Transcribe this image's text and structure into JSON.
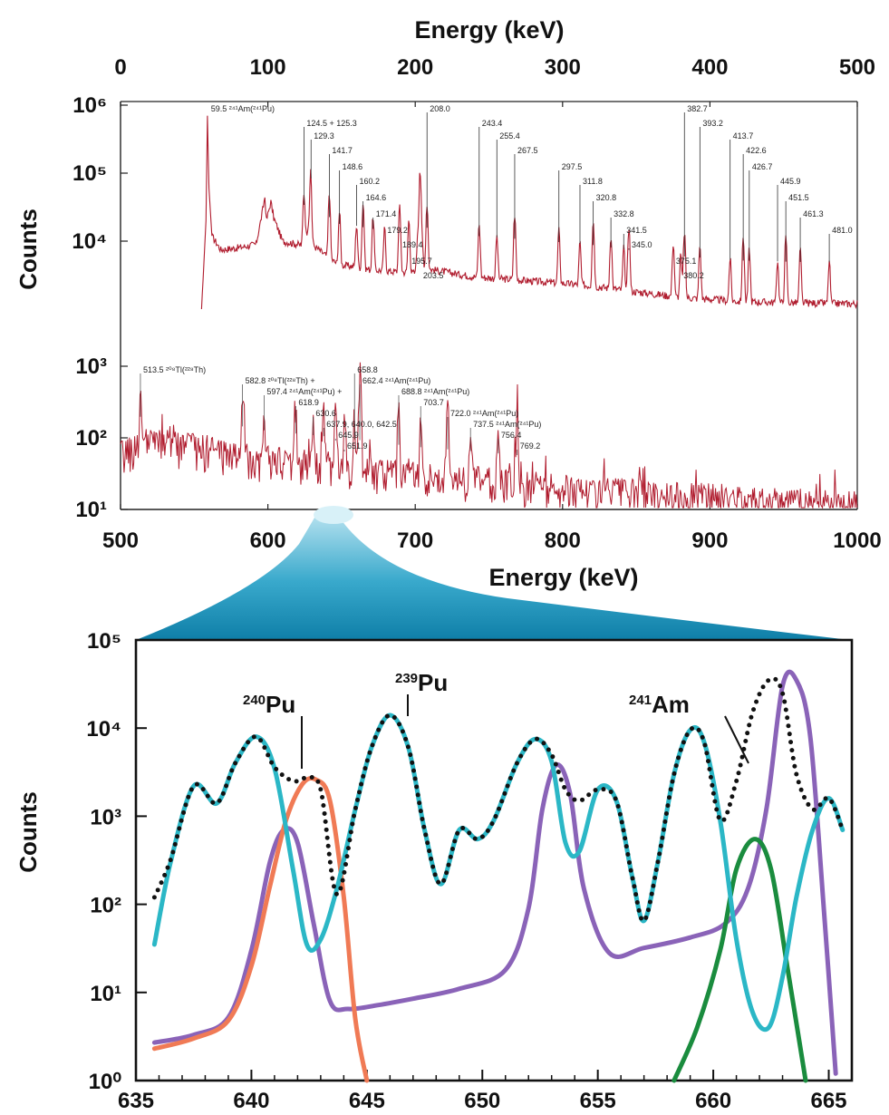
{
  "chart_data": [
    {
      "type": "line",
      "panel": "upper",
      "title": "",
      "xlabel": "Energy (keV)",
      "ylabel": "Counts",
      "yscale": "log",
      "xlim": [
        0,
        500
      ],
      "ylim": [
        1000,
        1000000
      ],
      "xticks": [
        "0",
        "100",
        "200",
        "300",
        "400",
        "500"
      ],
      "yticks": [
        "10⁶",
        "10⁵",
        "10⁴"
      ],
      "color": "#b01c2e",
      "baseline": [
        [
          0,
          1000
        ],
        [
          55,
          1000
        ],
        [
          58,
          20000
        ],
        [
          59,
          700000
        ],
        [
          60,
          60000
        ],
        [
          62,
          12000
        ],
        [
          68,
          7500
        ],
        [
          80,
          8000
        ],
        [
          92,
          9000
        ],
        [
          96,
          25000
        ],
        [
          98,
          45000
        ],
        [
          99,
          20000
        ],
        [
          102,
          38000
        ],
        [
          104,
          22000
        ],
        [
          110,
          10000
        ],
        [
          120,
          9000
        ],
        [
          125,
          8500
        ],
        [
          129,
          30000
        ],
        [
          130,
          9000
        ],
        [
          140,
          6000
        ],
        [
          148,
          4500
        ],
        [
          160,
          4200
        ],
        [
          170,
          3800
        ],
        [
          200,
          3400
        ],
        [
          203,
          35000
        ],
        [
          206,
          4000
        ],
        [
          240,
          3000
        ],
        [
          300,
          2400
        ],
        [
          320,
          2200
        ],
        [
          350,
          1800
        ],
        [
          380,
          1500
        ],
        [
          420,
          1300
        ],
        [
          450,
          1250
        ],
        [
          500,
          1200
        ]
      ],
      "peaks_annotated": [
        {
          "x": 59.5,
          "label": "59.5 ²⁴¹Am(²⁴¹Pu)"
        },
        {
          "x": 124.5,
          "label": "124.5 + 125.3"
        },
        {
          "x": 129.3,
          "label": "129.3"
        },
        {
          "x": 141.7,
          "label": "141.7"
        },
        {
          "x": 148.6,
          "label": "148.6"
        },
        {
          "x": 160.2,
          "label": "160.2"
        },
        {
          "x": 164.6,
          "label": "164.6"
        },
        {
          "x": 171.4,
          "label": "171.4"
        },
        {
          "x": 179.2,
          "label": "179.2"
        },
        {
          "x": 189.4,
          "label": "189.4"
        },
        {
          "x": 195.7,
          "label": "195.7"
        },
        {
          "x": 203.5,
          "label": "203.5"
        },
        {
          "x": 208.0,
          "label": "208.0"
        },
        {
          "x": 243.4,
          "label": "243.4"
        },
        {
          "x": 255.4,
          "label": "255.4"
        },
        {
          "x": 267.5,
          "label": "267.5"
        },
        {
          "x": 297.5,
          "label": "297.5"
        },
        {
          "x": 311.8,
          "label": "311.8"
        },
        {
          "x": 320.8,
          "label": "320.8"
        },
        {
          "x": 332.8,
          "label": "332.8"
        },
        {
          "x": 341.5,
          "label": "341.5"
        },
        {
          "x": 345.0,
          "label": "345.0"
        },
        {
          "x": 375.1,
          "label": "375.1"
        },
        {
          "x": 380.2,
          "label": "380.2"
        },
        {
          "x": 382.7,
          "label": "382.7"
        },
        {
          "x": 393.2,
          "label": "393.2"
        },
        {
          "x": 413.7,
          "label": "413.7"
        },
        {
          "x": 422.6,
          "label": "422.6"
        },
        {
          "x": 426.7,
          "label": "426.7"
        },
        {
          "x": 445.9,
          "label": "445.9"
        },
        {
          "x": 451.5,
          "label": "451.5"
        },
        {
          "x": 461.3,
          "label": "461.3"
        },
        {
          "x": 481.0,
          "label": "481.0"
        }
      ]
    },
    {
      "type": "line",
      "panel": "middle",
      "title": "",
      "xlabel": "Energy (keV)",
      "ylabel": "",
      "yscale": "log",
      "xlim": [
        500,
        1000
      ],
      "ylim": [
        10,
        1000
      ],
      "xticks": [
        "500",
        "600",
        "700",
        "800",
        "900",
        "1000"
      ],
      "yticks": [
        "10³",
        "10²",
        "10¹"
      ],
      "color": "#b01c2e",
      "baseline": [
        [
          500,
          60
        ],
        [
          520,
          90
        ],
        [
          560,
          70
        ],
        [
          600,
          50
        ],
        [
          650,
          40
        ],
        [
          700,
          30
        ],
        [
          750,
          25
        ],
        [
          800,
          20
        ],
        [
          850,
          17
        ],
        [
          900,
          15
        ],
        [
          950,
          13
        ],
        [
          1000,
          12
        ]
      ],
      "peaks_annotated": [
        {
          "x": 513.5,
          "label": "513.5 ²⁰⁸Tl(²²⁸Th)"
        },
        {
          "x": 582.8,
          "label": "582.8 ²⁰⁸Tl(²²⁸Th) +"
        },
        {
          "x": 597.4,
          "label": "597.4 ²⁴¹Am(²⁴¹Pu) +"
        },
        {
          "x": 618.9,
          "label": "618.9"
        },
        {
          "x": 630.6,
          "label": "630.6"
        },
        {
          "x": 637.9,
          "label": "637.9, 640.0, 642.5"
        },
        {
          "x": 645.9,
          "label": "645.9"
        },
        {
          "x": 651.9,
          "label": "651.9"
        },
        {
          "x": 658.8,
          "label": "658.8"
        },
        {
          "x": 662.4,
          "label": "662.4 ²⁴¹Am(²⁴¹Pu)"
        },
        {
          "x": 688.8,
          "label": "688.8 ²⁴¹Am(²⁴¹Pu)"
        },
        {
          "x": 703.7,
          "label": "703.7"
        },
        {
          "x": 722.0,
          "label": "722.0 ²⁴¹Am(²⁴¹Pu)"
        },
        {
          "x": 737.5,
          "label": "737.5 ²⁴¹Am(²⁴¹Pu)"
        },
        {
          "x": 756.4,
          "label": "756.4"
        },
        {
          "x": 769.2,
          "label": "769.2"
        }
      ]
    },
    {
      "type": "line",
      "panel": "lower",
      "title": "",
      "xlabel": "",
      "ylabel": "Counts",
      "yscale": "log",
      "xlim": [
        635,
        666
      ],
      "ylim": [
        1,
        100000
      ],
      "xticks": [
        "635",
        "640",
        "645",
        "650",
        "655",
        "660",
        "665"
      ],
      "yticks": [
        "10⁵",
        "10⁴",
        "10³",
        "10²",
        "10¹",
        "10⁰"
      ],
      "annotations": [
        {
          "text": "Pu",
          "mass": "240",
          "x": 642.5
        },
        {
          "text": "Pu",
          "mass": "239",
          "x": 646.0
        },
        {
          "text": "Am",
          "mass": "241",
          "x": 662.4
        }
      ],
      "series": [
        {
          "color": "#2bb7c6",
          "style": "solid",
          "x": [
            635.8,
            636.5,
            637.5,
            638.5,
            639.3,
            640.2,
            641.0,
            641.8,
            642.4,
            643.0,
            643.7,
            644.5,
            645.2,
            646.0,
            646.8,
            647.5,
            648.2,
            649.0,
            649.8,
            650.5,
            651.5,
            652.3,
            653.0,
            653.6,
            654.2,
            655.0,
            655.8,
            656.5,
            657.0,
            657.6,
            658.3,
            659.0,
            659.6,
            660.3,
            661.0,
            661.7,
            662.4,
            663.0,
            663.6,
            664.3,
            665.0,
            665.6
          ],
          "y": [
            35,
            300,
            2200,
            1400,
            4000,
            8000,
            3500,
            250,
            35,
            40,
            150,
            1200,
            6000,
            14000,
            6000,
            700,
            170,
            700,
            550,
            900,
            4000,
            7500,
            4200,
            500,
            400,
            2000,
            1500,
            200,
            65,
            300,
            3000,
            9500,
            7000,
            900,
            40,
            6,
            4,
            15,
            120,
            700,
            1600,
            700
          ]
        },
        {
          "color": "#111111",
          "style": "dotted",
          "x": [
            635.8,
            636.5,
            637.5,
            638.5,
            639.3,
            640.2,
            641.0,
            641.8,
            642.4,
            643.0,
            643.7,
            644.5,
            645.2,
            646.0,
            646.8,
            647.5,
            648.2,
            649.0,
            649.8,
            650.5,
            651.5,
            652.3,
            653.0,
            653.6,
            654.2,
            655.0,
            655.8,
            656.5,
            657.0,
            657.6,
            658.3,
            659.0,
            659.6,
            660.3,
            661.0,
            661.7,
            662.4,
            663.0,
            663.6,
            664.3,
            665.0,
            665.6
          ],
          "y": [
            120,
            320,
            2200,
            1400,
            4000,
            8000,
            3600,
            2500,
            2700,
            2000,
            130,
            1200,
            6000,
            14000,
            6000,
            700,
            170,
            700,
            550,
            900,
            4000,
            7500,
            5000,
            2000,
            1500,
            2000,
            1500,
            200,
            65,
            300,
            3000,
            9500,
            7000,
            900,
            2500,
            15000,
            35000,
            25000,
            3000,
            1200,
            1600,
            700
          ]
        },
        {
          "color": "#8a63b8",
          "style": "solid",
          "x": [
            635.8,
            637.5,
            639.0,
            640.0,
            640.8,
            641.4,
            642.0,
            642.7,
            643.4,
            644.2,
            645.5,
            647.0,
            649.0,
            651.0,
            652.0,
            652.6,
            653.2,
            653.8,
            654.4,
            655.5,
            657.0,
            659.0,
            660.5,
            661.5,
            662.3,
            663.0,
            663.6,
            664.2,
            664.8,
            665.3
          ],
          "y": [
            2.7,
            3.3,
            5.2,
            30,
            300,
            700,
            500,
            60,
            8,
            6.5,
            7.2,
            8.5,
            11,
            18,
            90,
            1200,
            3800,
            1800,
            150,
            28,
            32,
            42,
            60,
            150,
            1200,
            30000,
            35000,
            8000,
            80,
            1.2
          ]
        },
        {
          "color": "#f07a55",
          "style": "solid",
          "x": [
            635.8,
            637.5,
            639.0,
            640.0,
            640.8,
            641.5,
            642.2,
            642.8,
            643.4,
            644.0,
            644.5,
            645.0
          ],
          "y": [
            2.3,
            3.0,
            4.8,
            20,
            160,
            900,
            2300,
            2600,
            1500,
            120,
            5,
            1
          ]
        },
        {
          "color": "#1a8c3e",
          "style": "solid",
          "x": [
            658.3,
            659.3,
            660.3,
            661.0,
            661.8,
            662.5,
            663.2,
            664.0
          ],
          "y": [
            1,
            4,
            30,
            250,
            550,
            250,
            20,
            1
          ]
        }
      ]
    }
  ]
}
